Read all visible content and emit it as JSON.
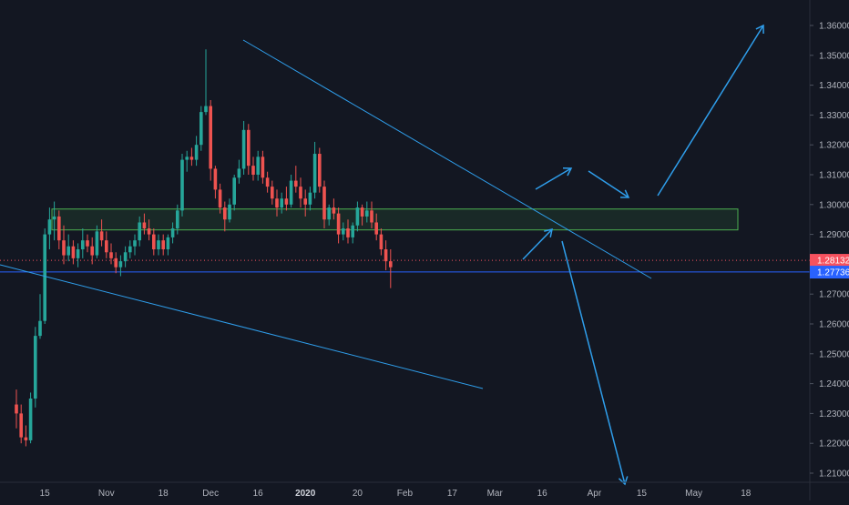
{
  "chart_data": {
    "type": "candlestick",
    "instrument_axis": "price",
    "y_ticks": [
      "1.21000",
      "1.22000",
      "1.23000",
      "1.24000",
      "1.25000",
      "1.26000",
      "1.27000",
      "1.28000",
      "1.29000",
      "1.30000",
      "1.31000",
      "1.32000",
      "1.33000",
      "1.34000",
      "1.35000",
      "1.36000"
    ],
    "y_tick_values": [
      1.21,
      1.22,
      1.23,
      1.24,
      1.25,
      1.26,
      1.27,
      1.28,
      1.29,
      1.3,
      1.31,
      1.32,
      1.33,
      1.34,
      1.35,
      1.36
    ],
    "x_ticks": [
      {
        "label": "15",
        "bold": false,
        "i": 6
      },
      {
        "label": "Nov",
        "bold": false,
        "i": 19
      },
      {
        "label": "18",
        "bold": false,
        "i": 31
      },
      {
        "label": "Dec",
        "bold": false,
        "i": 41
      },
      {
        "label": "16",
        "bold": false,
        "i": 51
      },
      {
        "label": "2020",
        "bold": true,
        "i": 61
      },
      {
        "label": "20",
        "bold": false,
        "i": 72
      },
      {
        "label": "Feb",
        "bold": false,
        "i": 82
      },
      {
        "label": "17",
        "bold": false,
        "i": 92
      },
      {
        "label": "Mar",
        "bold": false,
        "i": 101
      },
      {
        "label": "16",
        "bold": false,
        "i": 111
      },
      {
        "label": "Apr",
        "bold": false,
        "i": 122
      },
      {
        "label": "15",
        "bold": false,
        "i": 132
      },
      {
        "label": "May",
        "bold": false,
        "i": 143
      },
      {
        "label": "18",
        "bold": false,
        "i": 154
      }
    ],
    "price_labels": [
      {
        "value": 1.28132,
        "text": "1.28132",
        "color": "#f7525f"
      },
      {
        "value": 1.27736,
        "text": "1.27736",
        "color": "#2962ff"
      }
    ],
    "support_zone": {
      "top": 1.2985,
      "bottom": 1.2915
    },
    "horizontal_line": 1.2774,
    "dotted_line": 1.2813,
    "candles": [
      [
        1.233,
        1.238,
        1.225,
        1.23
      ],
      [
        1.23,
        1.233,
        1.22,
        1.222
      ],
      [
        1.222,
        1.226,
        1.219,
        1.221
      ],
      [
        1.221,
        1.237,
        1.22,
        1.235
      ],
      [
        1.235,
        1.259,
        1.232,
        1.256
      ],
      [
        1.256,
        1.27,
        1.255,
        1.261
      ],
      [
        1.261,
        1.292,
        1.26,
        1.29
      ],
      [
        1.29,
        1.299,
        1.285,
        1.295
      ],
      [
        1.295,
        1.301,
        1.288,
        1.296
      ],
      [
        1.296,
        1.298,
        1.285,
        1.288
      ],
      [
        1.288,
        1.293,
        1.28,
        1.283
      ],
      [
        1.283,
        1.29,
        1.281,
        1.286
      ],
      [
        1.286,
        1.288,
        1.28,
        1.282
      ],
      [
        1.282,
        1.287,
        1.279,
        1.285
      ],
      [
        1.285,
        1.292,
        1.282,
        1.288
      ],
      [
        1.288,
        1.29,
        1.284,
        1.286
      ],
      [
        1.286,
        1.289,
        1.28,
        1.283
      ],
      [
        1.283,
        1.293,
        1.282,
        1.291
      ],
      [
        1.291,
        1.295,
        1.286,
        1.288
      ],
      [
        1.288,
        1.291,
        1.282,
        1.284
      ],
      [
        1.284,
        1.287,
        1.28,
        1.282
      ],
      [
        1.282,
        1.284,
        1.277,
        1.279
      ],
      [
        1.279,
        1.283,
        1.276,
        1.281
      ],
      [
        1.281,
        1.286,
        1.279,
        1.284
      ],
      [
        1.284,
        1.288,
        1.282,
        1.286
      ],
      [
        1.286,
        1.29,
        1.283,
        1.288
      ],
      [
        1.288,
        1.296,
        1.286,
        1.294
      ],
      [
        1.294,
        1.297,
        1.29,
        1.292
      ],
      [
        1.292,
        1.295,
        1.288,
        1.29
      ],
      [
        1.29,
        1.292,
        1.283,
        1.285
      ],
      [
        1.285,
        1.29,
        1.283,
        1.288
      ],
      [
        1.288,
        1.29,
        1.283,
        1.285
      ],
      [
        1.285,
        1.29,
        1.283,
        1.289
      ],
      [
        1.289,
        1.294,
        1.287,
        1.292
      ],
      [
        1.292,
        1.3,
        1.29,
        1.298
      ],
      [
        1.298,
        1.317,
        1.296,
        1.315
      ],
      [
        1.315,
        1.318,
        1.311,
        1.316
      ],
      [
        1.316,
        1.319,
        1.313,
        1.315
      ],
      [
        1.315,
        1.323,
        1.313,
        1.32
      ],
      [
        1.32,
        1.333,
        1.318,
        1.331
      ],
      [
        1.331,
        1.352,
        1.33,
        1.333
      ],
      [
        1.333,
        1.335,
        1.308,
        1.312
      ],
      [
        1.312,
        1.313,
        1.302,
        1.305
      ],
      [
        1.305,
        1.307,
        1.297,
        1.299
      ],
      [
        1.299,
        1.301,
        1.291,
        1.295
      ],
      [
        1.295,
        1.302,
        1.294,
        1.3
      ],
      [
        1.3,
        1.31,
        1.298,
        1.309
      ],
      [
        1.309,
        1.315,
        1.307,
        1.312
      ],
      [
        1.312,
        1.328,
        1.31,
        1.325
      ],
      [
        1.325,
        1.327,
        1.31,
        1.313
      ],
      [
        1.313,
        1.316,
        1.308,
        1.31
      ],
      [
        1.31,
        1.318,
        1.308,
        1.316
      ],
      [
        1.316,
        1.318,
        1.307,
        1.309
      ],
      [
        1.309,
        1.311,
        1.304,
        1.306
      ],
      [
        1.306,
        1.308,
        1.3,
        1.302
      ],
      [
        1.302,
        1.305,
        1.296,
        1.299
      ],
      [
        1.299,
        1.304,
        1.297,
        1.302
      ],
      [
        1.302,
        1.306,
        1.298,
        1.3
      ],
      [
        1.3,
        1.31,
        1.299,
        1.308
      ],
      [
        1.308,
        1.313,
        1.304,
        1.306
      ],
      [
        1.306,
        1.309,
        1.299,
        1.302
      ],
      [
        1.302,
        1.305,
        1.296,
        1.3
      ],
      [
        1.3,
        1.306,
        1.298,
        1.304
      ],
      [
        1.304,
        1.321,
        1.302,
        1.317
      ],
      [
        1.317,
        1.319,
        1.304,
        1.306
      ],
      [
        1.306,
        1.308,
        1.292,
        1.295
      ],
      [
        1.295,
        1.3,
        1.293,
        1.299
      ],
      [
        1.299,
        1.302,
        1.295,
        1.297
      ],
      [
        1.297,
        1.299,
        1.287,
        1.29
      ],
      [
        1.29,
        1.294,
        1.288,
        1.292
      ],
      [
        1.292,
        1.295,
        1.287,
        1.289
      ],
      [
        1.289,
        1.294,
        1.287,
        1.293
      ],
      [
        1.293,
        1.301,
        1.291,
        1.299
      ],
      [
        1.299,
        1.3,
        1.293,
        1.296
      ],
      [
        1.296,
        1.301,
        1.294,
        1.298
      ],
      [
        1.298,
        1.301,
        1.292,
        1.294
      ],
      [
        1.294,
        1.297,
        1.288,
        1.29
      ],
      [
        1.29,
        1.292,
        1.283,
        1.285
      ],
      [
        1.285,
        1.288,
        1.278,
        1.281
      ],
      [
        1.281,
        1.285,
        1.272,
        1.279
      ]
    ]
  },
  "annotations": {
    "line_color": "#2f9eeb",
    "zone_border": "#4caf50",
    "candle_up": "#26a69a",
    "candle_down": "#ef5350"
  }
}
